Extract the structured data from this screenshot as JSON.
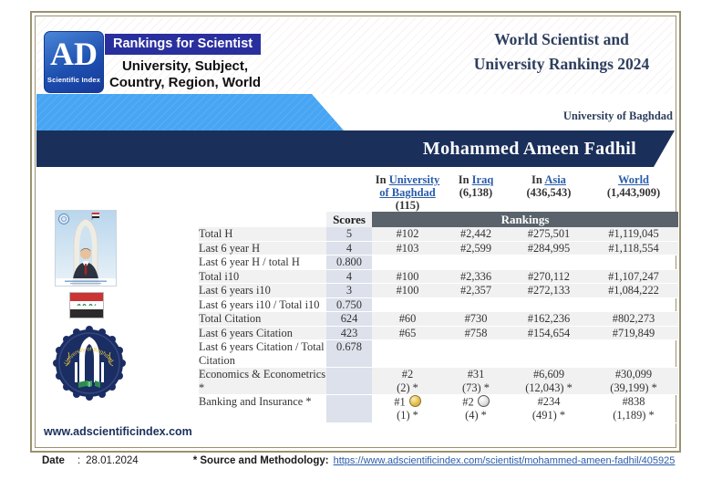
{
  "brand": {
    "logo_text": "AD",
    "logo_subtext": "Scientific Index",
    "banner": "Rankings for Scientist",
    "tagline_line1": "University, Subject,",
    "tagline_line2": "Country, Region, World"
  },
  "title": {
    "line1": "World Scientist and",
    "line2": "University Rankings 2024"
  },
  "university_name": "University of Baghdad",
  "scientist_name": "Mohammed Ameen Fadhil",
  "columns": [
    {
      "key": "university-of-baghdad",
      "prefix": "In",
      "link": "University of Baghdad",
      "count": "(115)"
    },
    {
      "key": "iraq",
      "prefix": "In",
      "link": "Iraq",
      "count": "(6,138)"
    },
    {
      "key": "asia",
      "prefix": "In",
      "link": "Asia",
      "count": "(436,543)"
    },
    {
      "key": "world",
      "prefix": "",
      "link": "World",
      "count": "(1,443,909)"
    }
  ],
  "table": {
    "scores_header": "Scores",
    "rankings_header": "Rankings",
    "rows": [
      {
        "label": "Total H",
        "score": "5",
        "shaded": true,
        "ranks": [
          {
            "rank": "#102"
          },
          {
            "rank": "#2,442"
          },
          {
            "rank": "#275,501"
          },
          {
            "rank": "#1,119,045"
          }
        ]
      },
      {
        "label": "Last 6 year H",
        "score": "4",
        "shaded": true,
        "ranks": [
          {
            "rank": "#103"
          },
          {
            "rank": "#2,599"
          },
          {
            "rank": "#284,995"
          },
          {
            "rank": "#1,118,554"
          }
        ]
      },
      {
        "label": "Last 6 year H / total H",
        "score": "0.800",
        "shaded": false,
        "ranks": []
      },
      {
        "label": "Total i10",
        "score": "4",
        "shaded": true,
        "ranks": [
          {
            "rank": "#100"
          },
          {
            "rank": "#2,336"
          },
          {
            "rank": "#270,112"
          },
          {
            "rank": "#1,107,247"
          }
        ]
      },
      {
        "label": "Last 6 years i10",
        "score": "3",
        "shaded": true,
        "ranks": [
          {
            "rank": "#100"
          },
          {
            "rank": "#2,357"
          },
          {
            "rank": "#272,133"
          },
          {
            "rank": "#1,084,222"
          }
        ]
      },
      {
        "label": "Last 6 years i10 / Total i10",
        "score": "0.750",
        "shaded": false,
        "ranks": []
      },
      {
        "label": "Total Citation",
        "score": "624",
        "shaded": true,
        "ranks": [
          {
            "rank": "#60"
          },
          {
            "rank": "#730"
          },
          {
            "rank": "#162,236"
          },
          {
            "rank": "#802,273"
          }
        ]
      },
      {
        "label": "Last 6 years Citation",
        "score": "423",
        "shaded": true,
        "ranks": [
          {
            "rank": "#65"
          },
          {
            "rank": "#758"
          },
          {
            "rank": "#154,654"
          },
          {
            "rank": "#719,849"
          }
        ]
      },
      {
        "label": "Last 6 years Citation / Total Citation",
        "score": "0.678",
        "shaded": false,
        "ranks": []
      },
      {
        "label": "Economics & Econometrics *",
        "score": "",
        "shaded": true,
        "ranks": [
          {
            "rank": "#2",
            "sub": "(2) *"
          },
          {
            "rank": "#31",
            "sub": "(73) *"
          },
          {
            "rank": "#6,609",
            "sub": "(12,043) *"
          },
          {
            "rank": "#30,099",
            "sub": "(39,199) *"
          }
        ]
      },
      {
        "label": "Banking and Insurance *",
        "score": "",
        "shaded": false,
        "ranks": [
          {
            "rank": "#1",
            "medal": "gold",
            "sub": "(1) *"
          },
          {
            "rank": "#2",
            "medal": "silver",
            "sub": "(4) *"
          },
          {
            "rank": "#234",
            "sub": "(491) *"
          },
          {
            "rank": "#838",
            "sub": "(1,189) *"
          }
        ]
      }
    ]
  },
  "images": {
    "photo": "scientist-portrait",
    "flag": "iraq-flag",
    "seal": "university-of-baghdad-seal"
  },
  "footer": {
    "website": "www.adscientificindex.com",
    "date_label": "Date",
    "date_separator": ":",
    "date_value": "28.01.2024",
    "source_label": "* Source and Methodology:",
    "source_link": "https://www.adscientificindex.com/scientist/mohammed-ameen-fadhil/405925"
  },
  "colors": {
    "accent_blue": "#47a5f3",
    "navy": "#1a2f5a",
    "link_blue": "#2a5caa",
    "rankings_header_bg": "#5a636b",
    "scores_band": "#dce1eb",
    "row_shade": "#f1f1f1",
    "frame_tan": "#9a9170",
    "gold_medal": "#e5c04c",
    "silver_medal": "#d9d9d9"
  }
}
